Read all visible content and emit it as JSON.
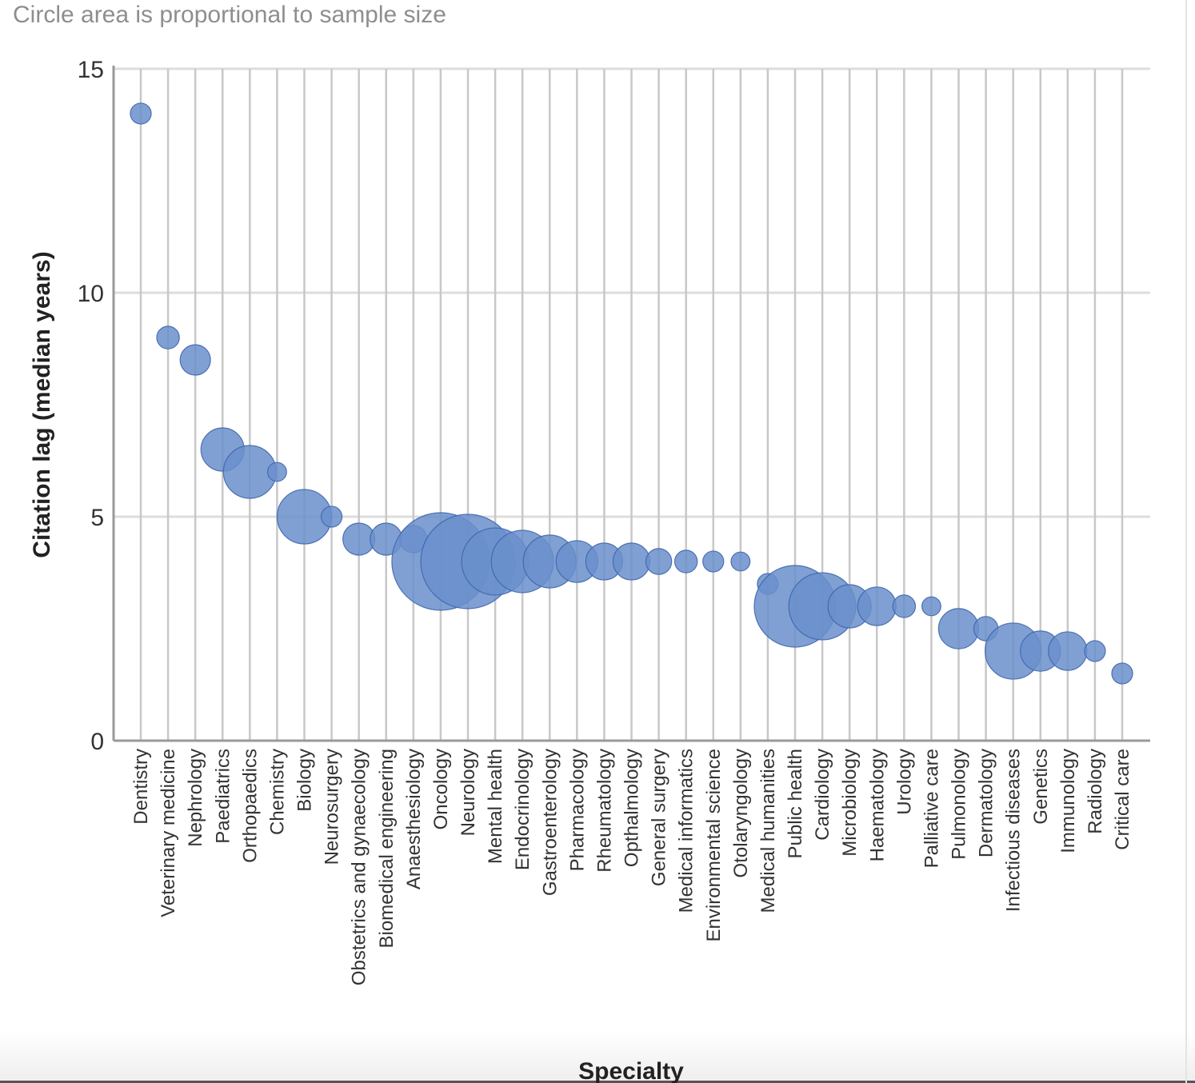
{
  "chart_data": {
    "type": "scatter",
    "subtitle": "Circle area is proportional to sample size",
    "xlabel": "Specialty",
    "ylabel": "Citation lag (median years)",
    "ylim": [
      0,
      15
    ],
    "yticks": [
      0,
      5,
      10,
      15
    ],
    "grid": true,
    "colors": {
      "fill": "#6a8fcb",
      "stroke": "#3f66ad",
      "grid": "#c8c8c8",
      "axis": "#9a9a9a"
    },
    "size_note": "relative sample size (bubble area units)",
    "points": [
      {
        "category": "Dentistry",
        "y": 14.0,
        "size": 1.7
      },
      {
        "category": "Veterinary medicine",
        "y": 9.0,
        "size": 2.0
      },
      {
        "category": "Nephrology",
        "y": 8.5,
        "size": 3.6
      },
      {
        "category": "Paediatrics",
        "y": 6.5,
        "size": 7.3
      },
      {
        "category": "Orthopaedics",
        "y": 6.0,
        "size": 10.9
      },
      {
        "category": "Chemistry",
        "y": 6.0,
        "size": 1.4
      },
      {
        "category": "Biology",
        "y": 5.0,
        "size": 11.6
      },
      {
        "category": "Neurosurgery",
        "y": 5.0,
        "size": 1.7
      },
      {
        "category": "Obstetrics and gynaecology",
        "y": 4.5,
        "size": 4.0
      },
      {
        "category": "Biomedical engineering",
        "y": 4.5,
        "size": 4.0
      },
      {
        "category": "Anaesthesiology",
        "y": 4.5,
        "size": 2.9
      },
      {
        "category": "Oncology",
        "y": 4.0,
        "size": 37.2
      },
      {
        "category": "Neurology",
        "y": 4.0,
        "size": 34.8
      },
      {
        "category": "Mental health",
        "y": 4.0,
        "size": 17.6
      },
      {
        "category": "Endocrinology",
        "y": 4.0,
        "size": 15.2
      },
      {
        "category": "Gastroenterology",
        "y": 4.0,
        "size": 10.9
      },
      {
        "category": "Pharmacology",
        "y": 4.0,
        "size": 6.8
      },
      {
        "category": "Rheumatology",
        "y": 4.0,
        "size": 5.3
      },
      {
        "category": "Opthalmology",
        "y": 4.0,
        "size": 5.3
      },
      {
        "category": "General surgery",
        "y": 4.0,
        "size": 2.6
      },
      {
        "category": "Medical informatics",
        "y": 4.0,
        "size": 2.0
      },
      {
        "category": "Environmental science",
        "y": 4.0,
        "size": 1.7
      },
      {
        "category": "Otolaryngology",
        "y": 4.0,
        "size": 1.4
      },
      {
        "category": "Medical humanities",
        "y": 3.5,
        "size": 1.7
      },
      {
        "category": "Public health",
        "y": 3.0,
        "size": 26.0
      },
      {
        "category": "Cardiology",
        "y": 3.0,
        "size": 17.6
      },
      {
        "category": "Microbiology",
        "y": 3.0,
        "size": 7.3
      },
      {
        "category": "Haematology",
        "y": 3.0,
        "size": 5.8
      },
      {
        "category": "Urology",
        "y": 3.0,
        "size": 2.0
      },
      {
        "category": "Palliative care",
        "y": 3.0,
        "size": 1.4
      },
      {
        "category": "Pulmonology",
        "y": 2.5,
        "size": 6.3
      },
      {
        "category": "Dermatology",
        "y": 2.5,
        "size": 2.3
      },
      {
        "category": "Infectious diseases",
        "y": 2.0,
        "size": 12.3
      },
      {
        "category": "Genetics",
        "y": 2.0,
        "size": 6.3
      },
      {
        "category": "Immunology",
        "y": 2.0,
        "size": 5.8
      },
      {
        "category": "Radiology",
        "y": 2.0,
        "size": 1.7
      },
      {
        "category": "Critical care",
        "y": 1.5,
        "size": 1.7
      }
    ]
  }
}
